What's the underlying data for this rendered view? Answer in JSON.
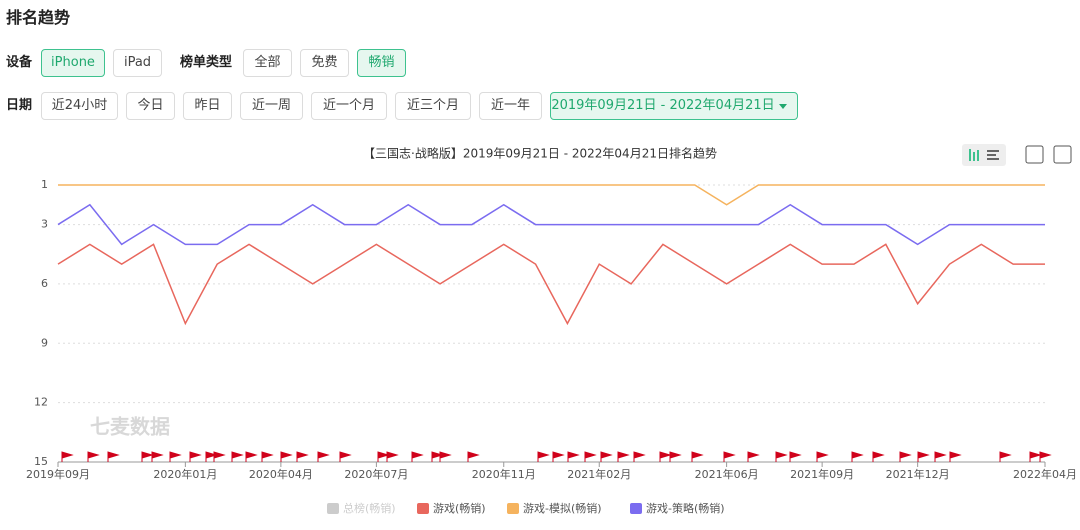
{
  "header": {
    "title": "排名趋势"
  },
  "filters": {
    "device": {
      "label": "设备",
      "options": [
        "iPhone",
        "iPad"
      ],
      "selected": 0
    },
    "list_type": {
      "label": "榜单类型",
      "options": [
        "全部",
        "免费",
        "畅销"
      ],
      "selected": 2
    },
    "date": {
      "label": "日期",
      "options": [
        "近24小时",
        "今日",
        "昨日",
        "近一周",
        "近一个月",
        "近三个月",
        "近一年"
      ],
      "range": "2019年09月21日 - 2022年04月21日"
    }
  },
  "watermark": "七麦数据",
  "chart_data": {
    "type": "line",
    "title": "【三国志·战略版】2019年09月21日 - 2022年04月21日排名趋势",
    "categories": [
      "2019年09月",
      null,
      null,
      null,
      "2020年01月",
      null,
      null,
      "2020年04月",
      null,
      null,
      "2020年07月",
      null,
      null,
      null,
      "2020年11月",
      null,
      null,
      "2021年02月",
      null,
      null,
      null,
      "2021年06月",
      null,
      null,
      "2021年09月",
      null,
      null,
      "2021年12月",
      null,
      null,
      null,
      "2022年04月"
    ],
    "series": [
      {
        "name": "总榜(畅销)",
        "color": "#cccccc",
        "hidden": true,
        "values": [
          null,
          null,
          null,
          null,
          null,
          null,
          null,
          null,
          null,
          null,
          null,
          null,
          null,
          null,
          null,
          null,
          null,
          null,
          null,
          null,
          null,
          null,
          null,
          null,
          null,
          null,
          null,
          null,
          null,
          null,
          null,
          null
        ]
      },
      {
        "name": "游戏(畅销)",
        "color": "#e8675d",
        "values": [
          5,
          4,
          5,
          4,
          8,
          5,
          4,
          5,
          6,
          5,
          4,
          5,
          6,
          5,
          4,
          5,
          8,
          5,
          6,
          4,
          5,
          6,
          5,
          4,
          5,
          5,
          4,
          7,
          5,
          4,
          5,
          5
        ]
      },
      {
        "name": "游戏-模拟(畅销)",
        "color": "#f5b35e",
        "values": [
          1,
          1,
          1,
          1,
          1,
          1,
          1,
          1,
          1,
          1,
          1,
          1,
          1,
          1,
          1,
          1,
          1,
          1,
          1,
          1,
          1,
          2,
          1,
          1,
          1,
          1,
          1,
          1,
          1,
          1,
          1,
          1
        ]
      },
      {
        "name": "游戏-策略(畅销)",
        "color": "#7b6cf0",
        "values": [
          3,
          2,
          4,
          3,
          4,
          4,
          3,
          3,
          2,
          3,
          3,
          2,
          3,
          3,
          2,
          3,
          3,
          3,
          3,
          3,
          3,
          3,
          3,
          2,
          3,
          3,
          3,
          4,
          3,
          3,
          3,
          3
        ]
      }
    ],
    "ylim": [
      1,
      15
    ],
    "yticks": [
      1,
      3,
      6,
      9,
      12,
      15
    ],
    "inverted": true,
    "grid": true,
    "legend": "bottom"
  }
}
